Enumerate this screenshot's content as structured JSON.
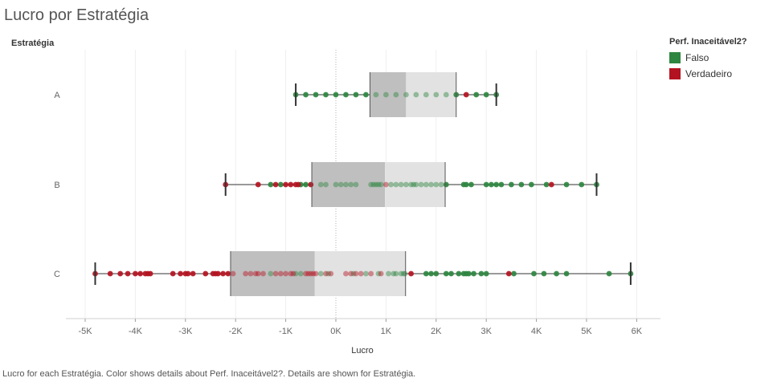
{
  "title": "Lucro por Estratégia",
  "row_header": "Estratégia",
  "legend": {
    "title": "Perf. Inaceitável2?",
    "items": [
      {
        "label": "Falso",
        "color": "#2e8540"
      },
      {
        "label": "Verdadeiro",
        "color": "#b31321"
      }
    ]
  },
  "footer": "Lucro for each Estratégia.  Color shows details about Perf. Inaceitável2?.  Details are shown for Estratégia.",
  "chart_data": {
    "type": "boxplot",
    "title": "Lucro por Estratégia",
    "xlabel": "Lucro",
    "ylabel": "Estratégia",
    "xlim": [
      -5300,
      6600
    ],
    "x_ticks": [
      -5000,
      -4000,
      -3000,
      -2000,
      -1000,
      0,
      1000,
      2000,
      3000,
      4000,
      5000,
      6000
    ],
    "x_tick_labels": [
      "-5K",
      "-4K",
      "-3K",
      "-2K",
      "-1K",
      "0K",
      "1K",
      "2K",
      "3K",
      "4K",
      "5K",
      "6K"
    ],
    "categories": [
      "A",
      "B",
      "C"
    ],
    "grid": "vertical",
    "legend_position": "right",
    "colors": {
      "falso": "#2e8540",
      "verdadeiro": "#b31321",
      "box_lower": "#bfbfbf",
      "box_upper": "#e2e2e2"
    },
    "boxes": [
      {
        "category": "A",
        "min": -800,
        "q1": 680,
        "median": 1400,
        "q3": 2400,
        "max": 3200
      },
      {
        "category": "B",
        "min": -2200,
        "q1": -480,
        "median": 980,
        "q3": 2180,
        "max": 5200
      },
      {
        "category": "C",
        "min": -4800,
        "q1": -2100,
        "median": -420,
        "q3": 1390,
        "max": 5880
      }
    ],
    "points": [
      {
        "category": "A",
        "falso": [
          -800,
          -600,
          -400,
          -200,
          0,
          200,
          400,
          600,
          800,
          1000,
          1200,
          1400,
          1600,
          1800,
          2000,
          2200,
          2400,
          2800,
          3000,
          3200
        ],
        "verdadeiro": [
          2600
        ]
      },
      {
        "category": "B",
        "falso": [
          -1300,
          -1100,
          -700,
          -600,
          -300,
          -200,
          0,
          100,
          200,
          300,
          400,
          700,
          750,
          800,
          850,
          900,
          1100,
          1200,
          1300,
          1400,
          1500,
          1550,
          1600,
          1700,
          1800,
          1900,
          2000,
          2100,
          2200,
          2550,
          2600,
          2700,
          3000,
          3100,
          3200,
          3300,
          3500,
          3700,
          3900,
          4200,
          4600,
          4900,
          5200
        ],
        "verdadeiro": [
          -2200,
          -1550,
          -1200,
          -1000,
          -900,
          -800,
          -750,
          -500,
          1000,
          4300
        ]
      },
      {
        "category": "C",
        "falso": [
          -1300,
          -800,
          -700,
          -300,
          -150,
          350,
          600,
          850,
          1050,
          1150,
          1200,
          1300,
          1350,
          1380,
          1800,
          1900,
          2000,
          2200,
          2300,
          2450,
          2550,
          2600,
          2650,
          2750,
          2900,
          3000,
          3550,
          3950,
          4150,
          4400,
          4600,
          5450,
          5880
        ],
        "verdadeiro": [
          -4800,
          -4500,
          -4300,
          -4150,
          -4000,
          -3900,
          -3800,
          -3750,
          -3700,
          -3250,
          -3100,
          -3000,
          -2950,
          -2850,
          -2600,
          -2450,
          -2400,
          -2350,
          -2250,
          -2150,
          -2050,
          -1800,
          -1700,
          -1600,
          -1550,
          -1450,
          -1200,
          -1100,
          -1000,
          -900,
          -850,
          -600,
          -550,
          -500,
          -450,
          -400,
          -200,
          -100,
          200,
          300,
          400,
          500,
          700,
          900,
          1500,
          3450
        ]
      }
    ]
  }
}
